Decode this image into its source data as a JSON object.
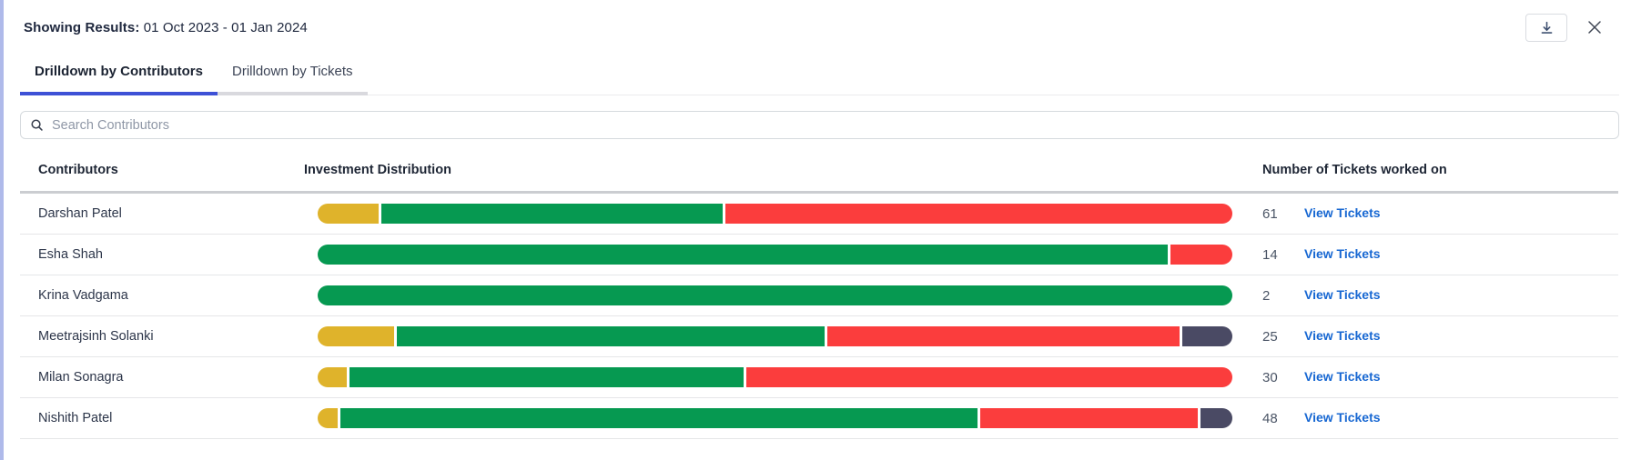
{
  "header": {
    "results_label": "Showing Results:",
    "results_value": "01 Oct 2023 - 01 Jan 2024"
  },
  "tabs": [
    {
      "label": "Drilldown by Contributors",
      "active": true
    },
    {
      "label": "Drilldown by Tickets",
      "active": false
    }
  ],
  "search": {
    "placeholder": "Search Contributors"
  },
  "table": {
    "columns": [
      "Contributors",
      "Investment Distribution",
      "Number of Tickets worked on"
    ],
    "view_tickets_label": "View Tickets",
    "rows": [
      {
        "name": "Darshan Patel",
        "tickets": 61,
        "segments": [
          {
            "color": "yellow",
            "pct": 6.7
          },
          {
            "color": "green",
            "pct": 37.5
          },
          {
            "color": "red",
            "pct": 55.8
          }
        ]
      },
      {
        "name": "Esha Shah",
        "tickets": 14,
        "segments": [
          {
            "color": "green",
            "pct": 93.2
          },
          {
            "color": "red",
            "pct": 6.8
          }
        ]
      },
      {
        "name": "Krina Vadgama",
        "tickets": 2,
        "segments": [
          {
            "color": "green",
            "pct": 100
          }
        ]
      },
      {
        "name": "Meetrajsinh Solanki",
        "tickets": 25,
        "segments": [
          {
            "color": "yellow",
            "pct": 8.4
          },
          {
            "color": "green",
            "pct": 47.2
          },
          {
            "color": "red",
            "pct": 38.9
          },
          {
            "color": "dark",
            "pct": 5.5
          }
        ]
      },
      {
        "name": "Milan Sonagra",
        "tickets": 30,
        "segments": [
          {
            "color": "yellow",
            "pct": 3.2
          },
          {
            "color": "green",
            "pct": 43.3
          },
          {
            "color": "red",
            "pct": 53.5
          }
        ]
      },
      {
        "name": "Nishith Patel",
        "tickets": 48,
        "segments": [
          {
            "color": "yellow",
            "pct": 2.2
          },
          {
            "color": "green",
            "pct": 70.3
          },
          {
            "color": "red",
            "pct": 24
          },
          {
            "color": "dark",
            "pct": 3.5
          }
        ]
      }
    ]
  },
  "colors": {
    "yellow": "#dfb32b",
    "green": "#069951",
    "red": "#fb3d3d",
    "dark": "#4a4a64",
    "link_blue": "#1767d2",
    "tab_indicator": "#3e51d6",
    "panel_left_border": "#afbaea"
  }
}
